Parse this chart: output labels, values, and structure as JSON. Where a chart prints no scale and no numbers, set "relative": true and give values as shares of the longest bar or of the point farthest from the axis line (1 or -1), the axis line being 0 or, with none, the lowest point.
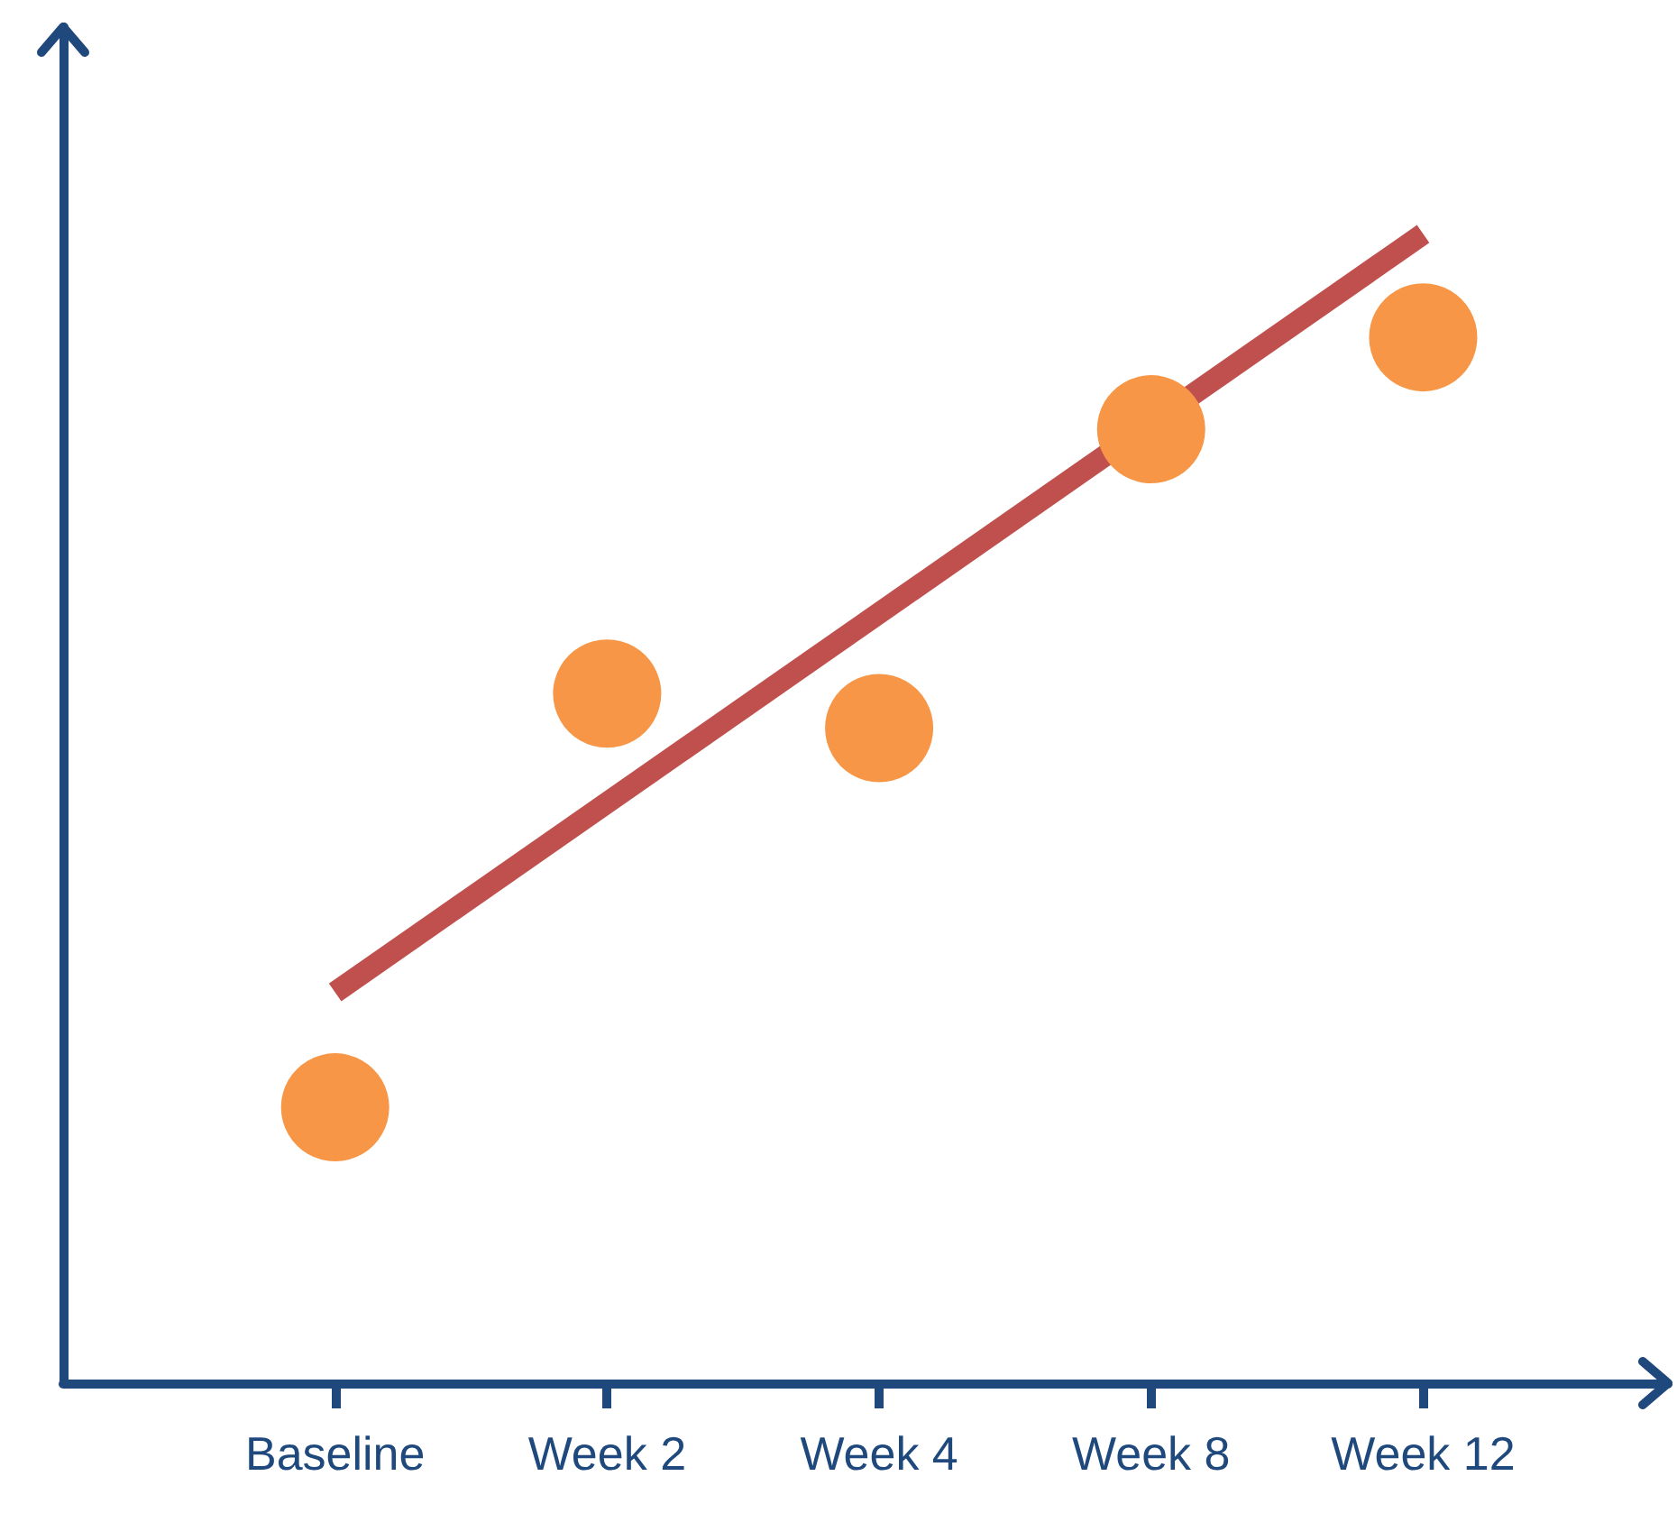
{
  "chart_data": {
    "type": "scatter",
    "relative": true,
    "categories": [
      "Baseline",
      "Week 2",
      "Week 4",
      "Week 8",
      "Week 12"
    ],
    "marker": "circle",
    "grid": false,
    "series": [
      {
        "color": "#f79646",
        "values": [
          0.24,
          0.6,
          0.57,
          0.83,
          0.91
        ]
      },
      {
        "type": "line",
        "color": "#c0504d",
        "line_style": "solid",
        "marker": "none",
        "values": [
          0.34,
          null,
          null,
          null,
          1.0
        ]
      }
    ]
  }
}
